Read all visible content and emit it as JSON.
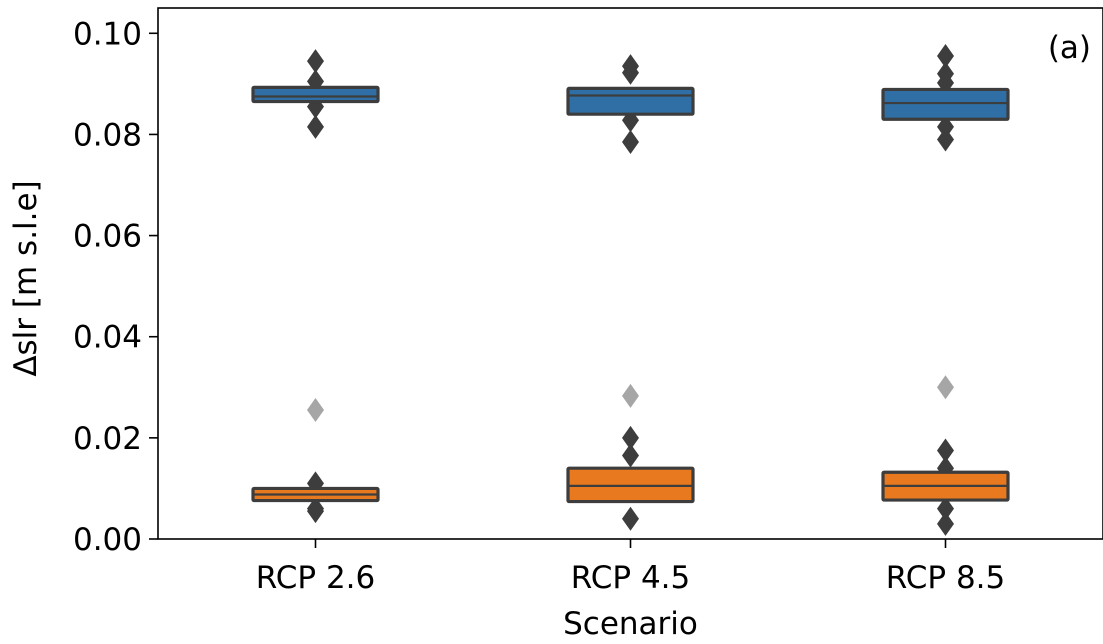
{
  "chart_data": {
    "type": "box",
    "panel_label": "(a)",
    "xlabel": "Scenario",
    "ylabel": "Δslr [m s.l.e]",
    "categories": [
      "RCP 2.6",
      "RCP 4.5",
      "RCP 8.5"
    ],
    "ylim": [
      0.0,
      0.105
    ],
    "yticks": [
      0.0,
      0.02,
      0.04,
      0.06,
      0.08,
      0.1
    ],
    "ytick_labels": [
      "0.00",
      "0.02",
      "0.04",
      "0.06",
      "0.08",
      "0.10"
    ],
    "grid": false,
    "colors": {
      "blue": "#2f6fa6",
      "orange": "#e8791e",
      "edge": "#3d3d3d",
      "outlier_dark": "#3d3d3d",
      "outlier_light": "#a6a6a6"
    },
    "series": [
      {
        "color": "#2f6fa6",
        "boxes": [
          {
            "category": "RCP 2.6",
            "q1": 0.0865,
            "median": 0.0875,
            "q3": 0.0893,
            "outliers": [
              0.0815,
              0.0855,
              0.0905,
              0.0945
            ],
            "outliers_light": []
          },
          {
            "category": "RCP 4.5",
            "q1": 0.084,
            "median": 0.0877,
            "q3": 0.0891,
            "outliers": [
              0.0785,
              0.0828,
              0.0922,
              0.0935
            ],
            "outliers_light": []
          },
          {
            "category": "RCP 8.5",
            "q1": 0.083,
            "median": 0.0862,
            "q3": 0.0889,
            "outliers": [
              0.079,
              0.0815,
              0.0902,
              0.092,
              0.0955
            ],
            "outliers_light": []
          }
        ]
      },
      {
        "color": "#e8791e",
        "boxes": [
          {
            "category": "RCP 2.6",
            "q1": 0.0076,
            "median": 0.0088,
            "q3": 0.01,
            "outliers": [
              0.0055,
              0.006,
              0.011
            ],
            "outliers_light": [
              0.0255
            ]
          },
          {
            "category": "RCP 4.5",
            "q1": 0.0074,
            "median": 0.0105,
            "q3": 0.014,
            "outliers": [
              0.004,
              0.0165,
              0.02
            ],
            "outliers_light": [
              0.0283
            ]
          },
          {
            "category": "RCP 8.5",
            "q1": 0.0077,
            "median": 0.0105,
            "q3": 0.0132,
            "outliers": [
              0.003,
              0.006,
              0.014,
              0.0175
            ],
            "outliers_light": [
              0.03
            ]
          }
        ]
      }
    ]
  }
}
